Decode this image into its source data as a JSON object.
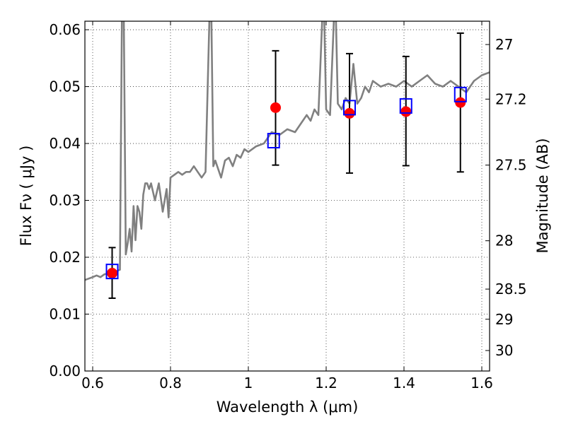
{
  "chart_data": {
    "type": "line",
    "xlabel": "Wavelength  λ (μm)",
    "ylabel": "Flux  Fν  ( μJy )",
    "ylabel_right": "Magnitude (AB)",
    "xlim": [
      0.58,
      1.62
    ],
    "ylim": [
      0.0,
      0.0615
    ],
    "grid": true,
    "x_ticks": [
      0.6,
      0.8,
      1.0,
      1.2,
      1.4,
      1.6
    ],
    "x_tick_labels": [
      "0.6",
      "0.8",
      "1",
      "1.2",
      "1.4",
      "1.6"
    ],
    "y_ticks": [
      0.0,
      0.01,
      0.02,
      0.03,
      0.04,
      0.05,
      0.06
    ],
    "y_tick_labels": [
      "0.00",
      "0.01",
      "0.02",
      "0.03",
      "0.04",
      "0.05",
      "0.06"
    ],
    "right_ticks": [
      {
        "label": "27",
        "flux": 0.0574
      },
      {
        "label": "27.2",
        "flux": 0.0478
      },
      {
        "label": "27.5",
        "flux": 0.0362
      },
      {
        "label": "28",
        "flux": 0.0229
      },
      {
        "label": "28.5",
        "flux": 0.0144
      },
      {
        "label": "29",
        "flux": 0.0091
      },
      {
        "label": "30",
        "flux": 0.0036
      }
    ],
    "series": [
      {
        "type": "line",
        "color": "#808080",
        "x": [
          0.58,
          0.6,
          0.61,
          0.62,
          0.63,
          0.64,
          0.65,
          0.66,
          0.67,
          0.675,
          0.68,
          0.685,
          0.69,
          0.695,
          0.7,
          0.705,
          0.71,
          0.715,
          0.72,
          0.725,
          0.73,
          0.735,
          0.74,
          0.745,
          0.75,
          0.76,
          0.77,
          0.78,
          0.79,
          0.795,
          0.8,
          0.81,
          0.82,
          0.83,
          0.84,
          0.85,
          0.86,
          0.87,
          0.88,
          0.89,
          0.9,
          0.905,
          0.91,
          0.915,
          0.92,
          0.93,
          0.94,
          0.95,
          0.96,
          0.97,
          0.98,
          0.99,
          1.0,
          1.02,
          1.04,
          1.06,
          1.08,
          1.1,
          1.12,
          1.14,
          1.15,
          1.16,
          1.17,
          1.18,
          1.19,
          1.195,
          1.2,
          1.21,
          1.22,
          1.225,
          1.23,
          1.24,
          1.25,
          1.26,
          1.27,
          1.28,
          1.29,
          1.3,
          1.31,
          1.32,
          1.34,
          1.36,
          1.38,
          1.4,
          1.42,
          1.44,
          1.46,
          1.48,
          1.5,
          1.52,
          1.54,
          1.56,
          1.58,
          1.6,
          1.62
        ],
        "y": [
          0.016,
          0.0165,
          0.0168,
          0.0165,
          0.017,
          0.0172,
          0.017,
          0.0175,
          0.0178,
          0.062,
          0.062,
          0.0205,
          0.0225,
          0.025,
          0.021,
          0.029,
          0.023,
          0.029,
          0.028,
          0.025,
          0.031,
          0.033,
          0.033,
          0.032,
          0.033,
          0.03,
          0.033,
          0.028,
          0.032,
          0.027,
          0.034,
          0.0345,
          0.035,
          0.0345,
          0.035,
          0.035,
          0.036,
          0.035,
          0.034,
          0.035,
          0.062,
          0.062,
          0.036,
          0.037,
          0.036,
          0.034,
          0.037,
          0.0375,
          0.036,
          0.038,
          0.0375,
          0.039,
          0.0385,
          0.0395,
          0.04,
          0.042,
          0.0415,
          0.0425,
          0.042,
          0.044,
          0.045,
          0.044,
          0.046,
          0.045,
          0.062,
          0.062,
          0.046,
          0.045,
          0.062,
          0.062,
          0.047,
          0.046,
          0.048,
          0.047,
          0.054,
          0.047,
          0.048,
          0.05,
          0.049,
          0.051,
          0.05,
          0.0505,
          0.05,
          0.051,
          0.05,
          0.051,
          0.052,
          0.0505,
          0.05,
          0.051,
          0.05,
          0.049,
          0.051,
          0.052,
          0.0525
        ]
      },
      {
        "type": "scatter",
        "marker": "circle",
        "color": "#ff0000",
        "x": [
          0.65,
          1.07,
          1.26,
          1.405,
          1.545
        ],
        "y": [
          0.0172,
          0.0463,
          0.0453,
          0.0456,
          0.0472
        ],
        "yerr_low": [
          0.0128,
          0.0362,
          0.0348,
          0.0361,
          0.035
        ],
        "yerr_high": [
          0.0217,
          0.0563,
          0.0558,
          0.0553,
          0.0594
        ],
        "err_color": "#000000"
      },
      {
        "type": "scatter",
        "marker": "square",
        "color": "#0000ff",
        "x": [
          0.65,
          1.065,
          1.26,
          1.405,
          1.545
        ],
        "y": [
          0.0175,
          0.0405,
          0.0463,
          0.0466,
          0.0486
        ]
      }
    ]
  }
}
